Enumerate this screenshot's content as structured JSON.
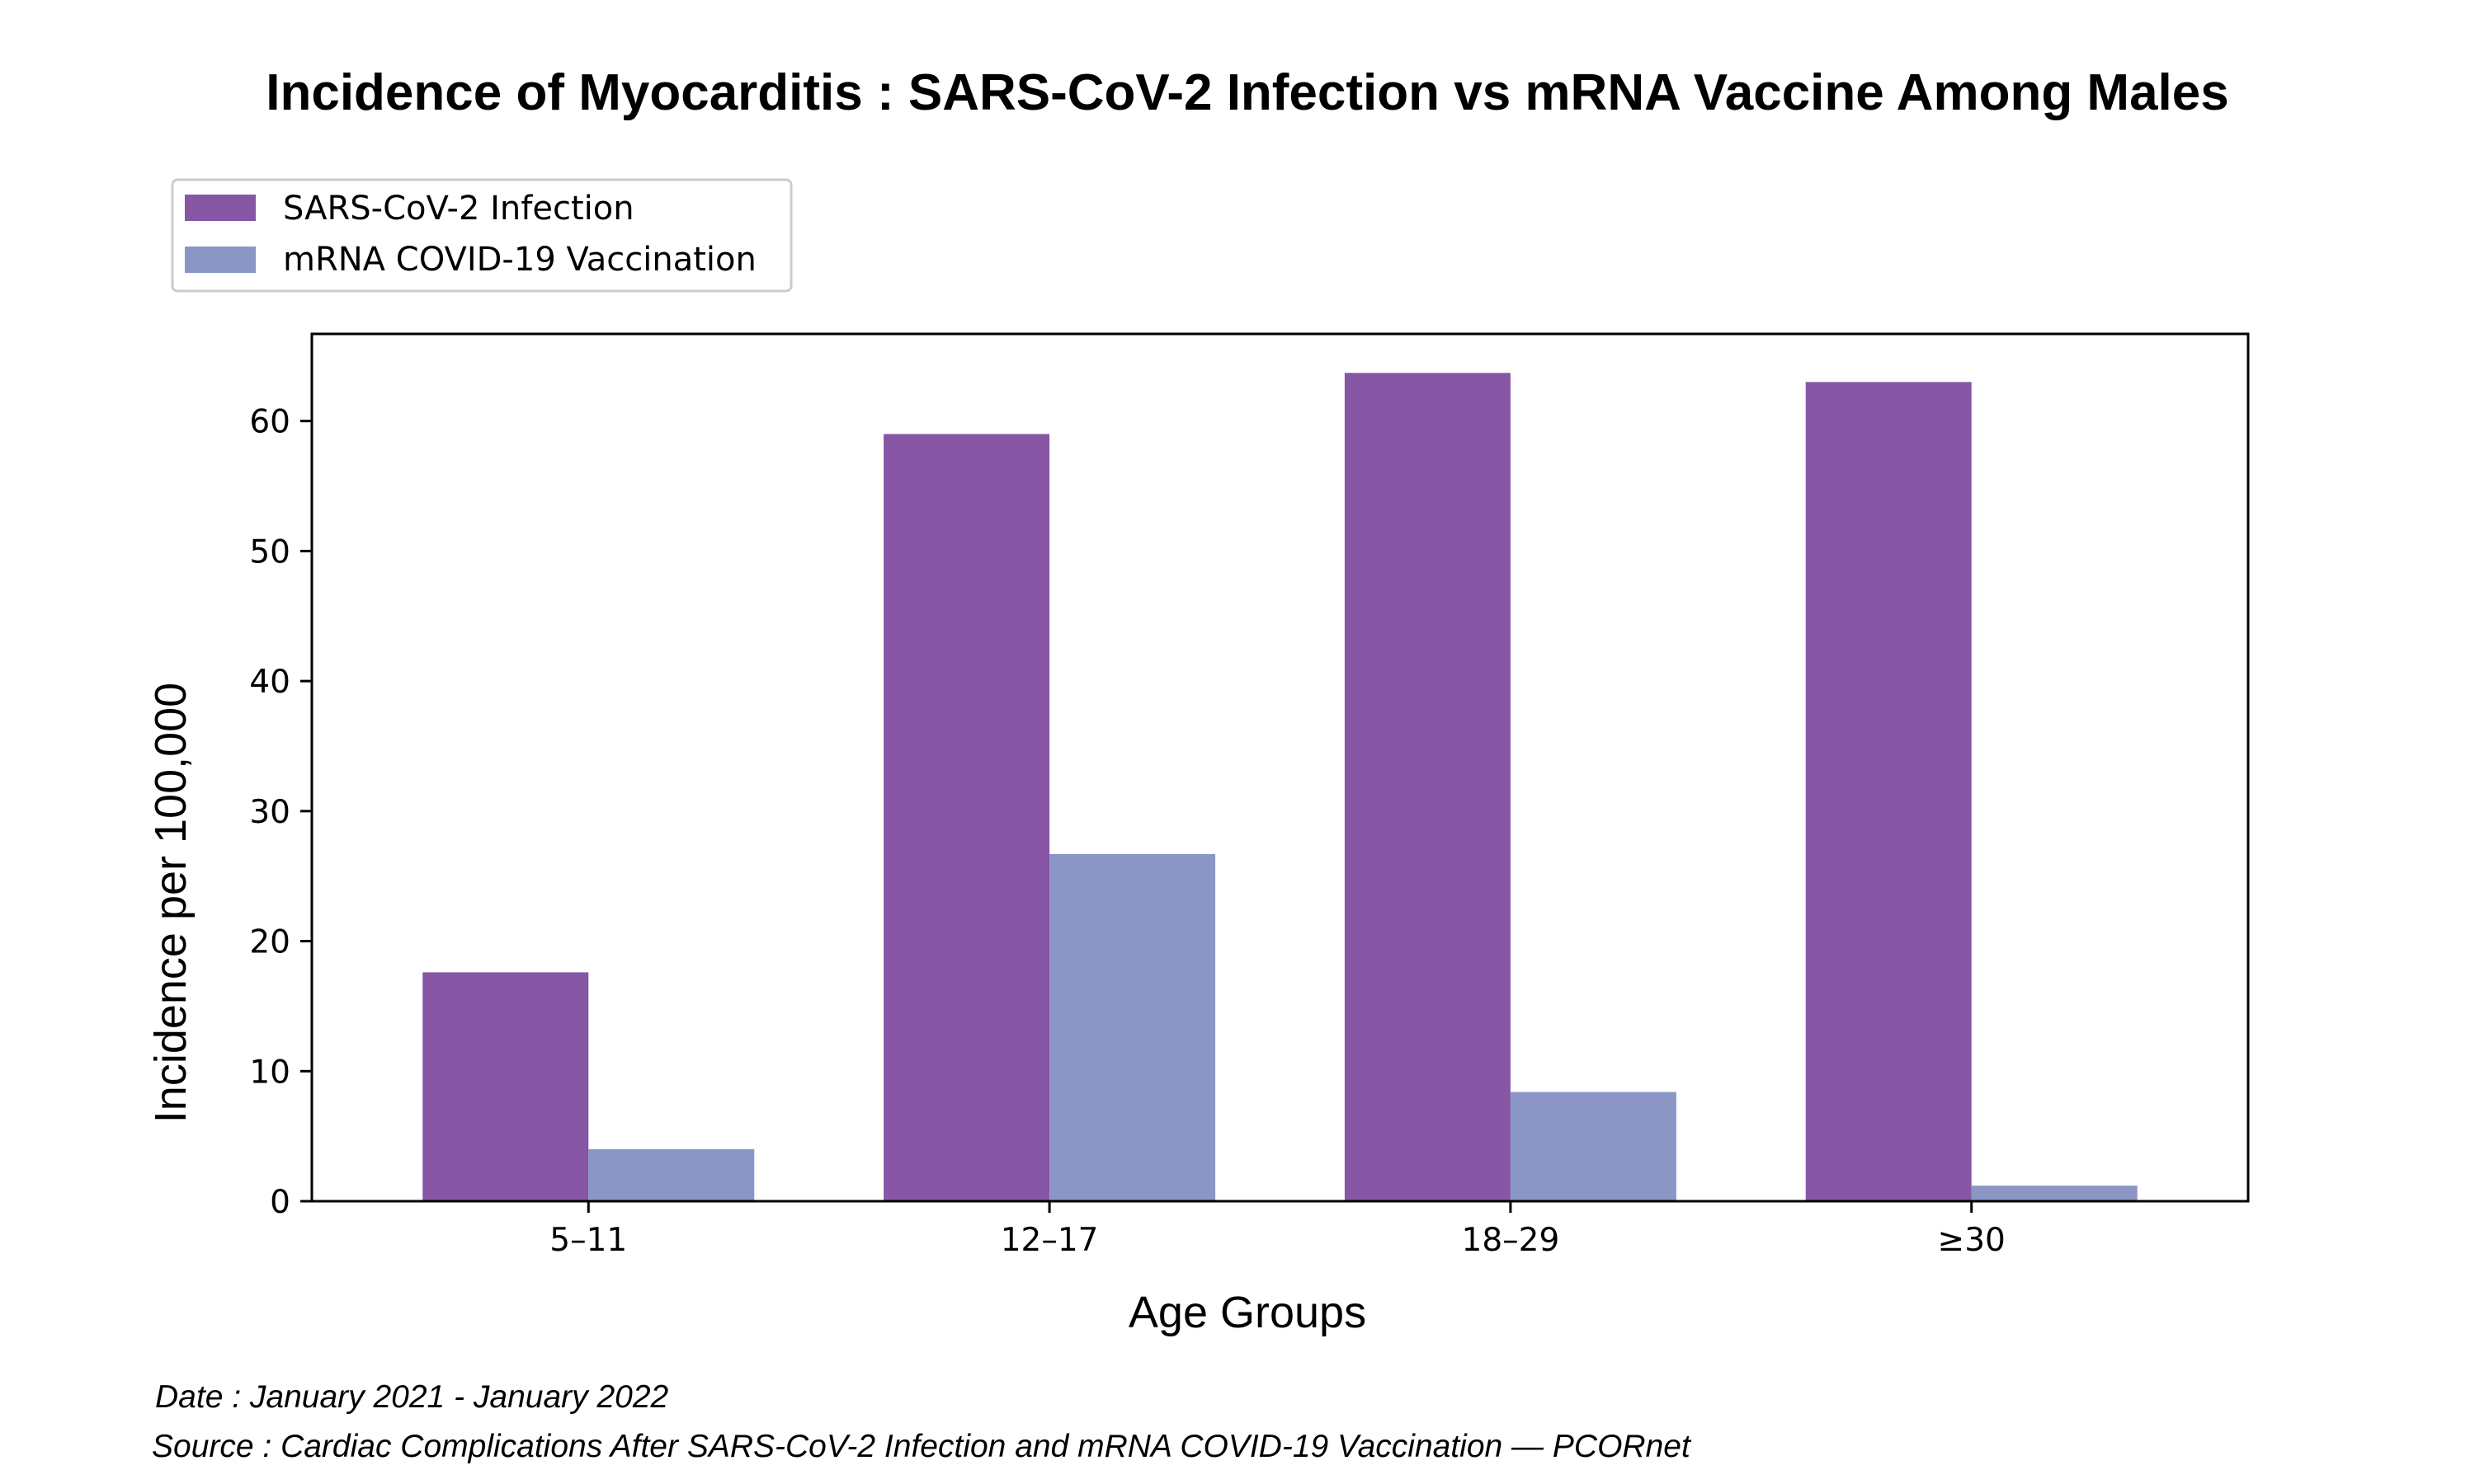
{
  "chart_data": {
    "type": "bar",
    "title": "Incidence of Myocarditis : SARS-CoV-2 Infection vs mRNA Vaccine Among Males",
    "xlabel": "Age Groups",
    "ylabel": "Incidence per 100,000",
    "categories": [
      "5–11",
      "12–17",
      "18–29",
      "≥30"
    ],
    "series": [
      {
        "name": "SARS-CoV-2 Infection",
        "values": [
          17.6,
          59.0,
          63.7,
          63.0
        ],
        "color": "#8756a5"
      },
      {
        "name": "mRNA COVID-19 Vaccination",
        "values": [
          4.0,
          26.7,
          8.4,
          1.2
        ],
        "color": "#8b96c6"
      }
    ],
    "ylim": [
      0,
      66.7
    ],
    "yticks": [
      0,
      10,
      20,
      30,
      40,
      50,
      60
    ],
    "grid": false,
    "legend_position": "top-left, outside the plot area above it"
  },
  "footnotes": {
    "date": "Date : January 2021 - January 2022",
    "source": "Source : Cardiac Complications After SARS-CoV-2 Infection and mRNA COVID-19 Vaccination — PCORnet"
  }
}
